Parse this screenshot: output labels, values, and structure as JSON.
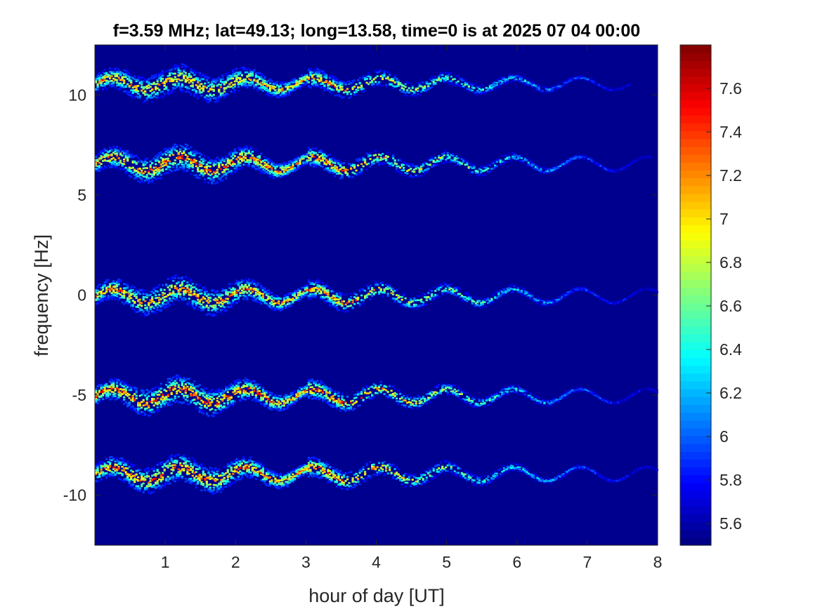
{
  "chart_data": {
    "type": "heatmap",
    "title": "f=3.59 MHz;  lat=49.13; long=13.58, time=0 is at 2025 07 04 00:00",
    "xlabel": "hour of day [UT]",
    "ylabel": "frequency [Hz]",
    "xlim": [
      0,
      8
    ],
    "ylim": [
      -12.5,
      12.5
    ],
    "xticks": [
      1,
      2,
      3,
      4,
      5,
      6,
      7,
      8
    ],
    "xtick_labels": [
      "1",
      "2",
      "3",
      "4",
      "5",
      "6",
      "7",
      "8"
    ],
    "yticks": [
      10,
      5,
      0,
      -5,
      -10
    ],
    "ytick_labels": [
      "10",
      "5",
      "0",
      "-5",
      "-10"
    ],
    "colormap": "jet",
    "colorbar": {
      "clim": [
        5.5,
        7.8
      ],
      "ticks": [
        5.6,
        5.8,
        6,
        6.2,
        6.4,
        6.6,
        6.8,
        7,
        7.2,
        7.4,
        7.6
      ],
      "tick_labels": [
        "5.6",
        "5.8",
        "6",
        "6.2",
        "6.4",
        "6.6",
        "6.8",
        "7",
        "7.2",
        "7.4",
        "7.6"
      ],
      "location": "right"
    },
    "background_color": "#00008f",
    "bands": [
      {
        "center_hz": 10.6,
        "x_end_hour": 7.6,
        "peak_level": 7.5,
        "wobble_hz": 0.3
      },
      {
        "center_hz": 6.6,
        "x_end_hour": 7.9,
        "peak_level": 7.7,
        "wobble_hz": 0.35
      },
      {
        "center_hz": 0.0,
        "x_end_hour": 8.0,
        "peak_level": 7.6,
        "wobble_hz": 0.35
      },
      {
        "center_hz": -5.0,
        "x_end_hour": 8.0,
        "peak_level": 7.8,
        "wobble_hz": 0.35
      },
      {
        "center_hz": -8.9,
        "x_end_hour": 8.0,
        "peak_level": 7.7,
        "wobble_hz": 0.35
      }
    ]
  }
}
